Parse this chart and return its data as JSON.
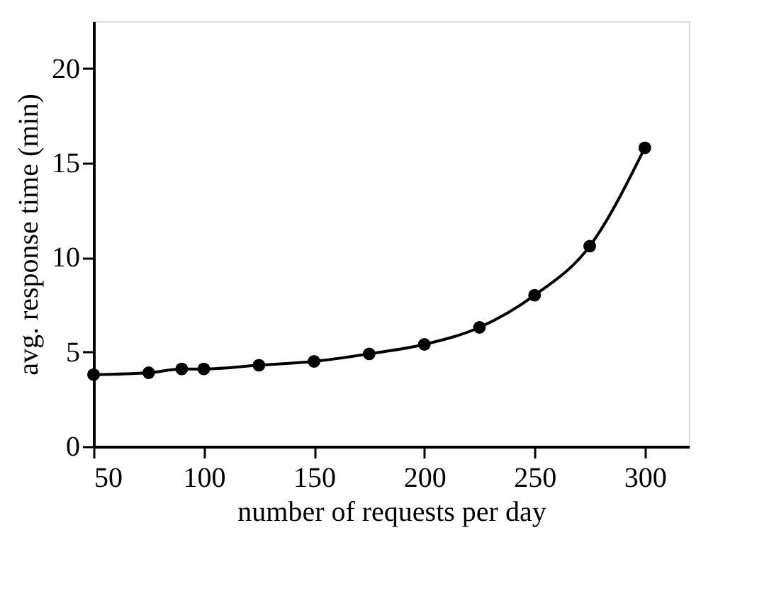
{
  "chart_data": {
    "type": "line",
    "xlabel": "number of requests per day",
    "ylabel": "avg. response time (min)",
    "x": [
      50,
      75,
      90,
      100,
      125,
      150,
      175,
      200,
      225,
      250,
      275,
      300
    ],
    "series": [
      {
        "color": "#000000",
        "values": [
          3.8,
          3.9,
          4.1,
          4.1,
          4.3,
          4.5,
          4.9,
          5.4,
          6.3,
          8.0,
          10.6,
          15.8
        ]
      }
    ],
    "xlim": [
      50,
      320
    ],
    "ylim": [
      0,
      22.5
    ],
    "xticks": [
      50,
      100,
      150,
      200,
      250,
      300
    ],
    "yticks": [
      0,
      5,
      10,
      15,
      20
    ],
    "marker": "circle",
    "line_style": "solid",
    "grid": false,
    "legend": false
  }
}
